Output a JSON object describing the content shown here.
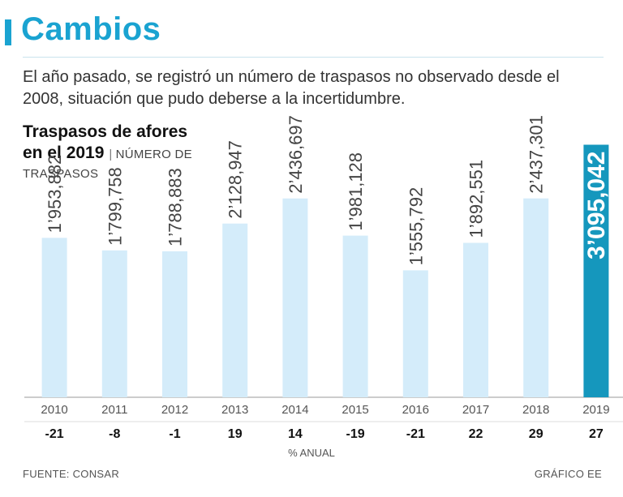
{
  "header": {
    "title": "Cambios",
    "subtitle": "El año pasado, se registró un número de traspasos no observado desde el 2008, situación que pudo deberse a la incertidumbre."
  },
  "chart_data": {
    "type": "bar",
    "title_line1": "Traspasos de afores",
    "title_line2": "en el 2019",
    "units_line1": "NÚMERO DE",
    "units_line2": "TRASPASOS",
    "categories": [
      "2010",
      "2011",
      "2012",
      "2013",
      "2014",
      "2015",
      "2016",
      "2017",
      "2018",
      "2019"
    ],
    "values": [
      1953882,
      1799758,
      1788883,
      2128947,
      2436697,
      1981128,
      1555792,
      1892551,
      2437301,
      3095042
    ],
    "value_labels": [
      "1’953,882",
      "1’799,758",
      "1’788,883",
      "2’128,947",
      "2’436,697",
      "1’981,128",
      "1’555,792",
      "1’892,551",
      "2’437,301",
      "3’095,042"
    ],
    "annual_change": [
      "-21",
      "-8",
      "-1",
      "19",
      "14",
      "-19",
      "-21",
      "22",
      "29",
      "27"
    ],
    "annual_change_label": "% ANUAL",
    "highlight_index": 9,
    "ylim": [
      0,
      3100000
    ],
    "colors": {
      "bar": "#d4ecfa",
      "highlight": "#1597bd",
      "highlight_text": "#ffffff",
      "label": "#444444",
      "axis": "#999999"
    }
  },
  "footer": {
    "source": "FUENTE: CONSAR",
    "credit": "GRÁFICO EE"
  }
}
